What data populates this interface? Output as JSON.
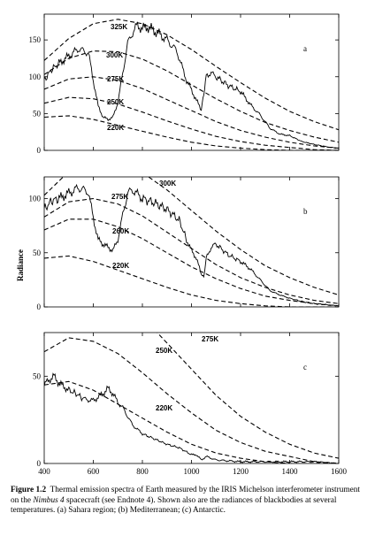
{
  "caption": {
    "label": "Figure 1.2",
    "text_before": "Thermal emission spectra of Earth measured by the IRIS Michelson interferometer instrument on the",
    "spacecraft": "Nimbus 4",
    "text_after": "spacecraft (see Endnote 4). Shown also are the radiances of blackbodies at several temperatures. (a) Sahara region; (b) Mediterranean; (c) Antarctic."
  },
  "chart_data": [
    {
      "type": "line",
      "panel": "a",
      "xlim": [
        400,
        1600
      ],
      "ylim": [
        0,
        185
      ],
      "yticks": [
        0,
        50,
        100,
        150
      ],
      "xticks": [
        400,
        600,
        800,
        1000,
        1200,
        1400,
        1600
      ],
      "xticklabels": [],
      "blackbody_curves": [
        {
          "label": "325K",
          "y": [
            122,
            152,
            172,
            178,
            172,
            157,
            137,
            114,
            92,
            71,
            53,
            39,
            28
          ]
        },
        {
          "label": "300K",
          "y": [
            103,
            125,
            135,
            134,
            124,
            108,
            89,
            70,
            53,
            38,
            27,
            18,
            11
          ]
        },
        {
          "label": "275K",
          "y": [
            83,
            97,
            100,
            95,
            84,
            69,
            54,
            39,
            27,
            18,
            11,
            6,
            3
          ]
        },
        {
          "label": "250K",
          "y": [
            64,
            72,
            70,
            63,
            52,
            40,
            29,
            19,
            12,
            7,
            4,
            1,
            0
          ]
        },
        {
          "label": "220K",
          "y": [
            45,
            47,
            42,
            34,
            26,
            18,
            11,
            6,
            3,
            1,
            0,
            0,
            0
          ]
        }
      ],
      "measured_spectrum": {
        "x": [
          400,
          430,
          460,
          500,
          540,
          580,
          600,
          620,
          640,
          660,
          680,
          700,
          720,
          740,
          760,
          780,
          800,
          820,
          860,
          900,
          940,
          960,
          980,
          1000,
          1020,
          1040,
          1050,
          1060,
          1080,
          1100,
          1150,
          1200,
          1240,
          1280,
          1320,
          1360,
          1400,
          1450,
          1500,
          1550,
          1590
        ],
        "y": [
          95,
          110,
          118,
          128,
          138,
          132,
          95,
          60,
          45,
          42,
          45,
          65,
          105,
          145,
          160,
          170,
          165,
          168,
          160,
          150,
          135,
          115,
          95,
          82,
          68,
          55,
          75,
          102,
          105,
          100,
          88,
          80,
          62,
          48,
          30,
          22,
          20,
          12,
          8,
          5,
          3
        ]
      }
    },
    {
      "type": "line",
      "panel": "b",
      "xlim": [
        400,
        1600
      ],
      "ylim": [
        0,
        120
      ],
      "yticks": [
        0,
        50,
        100
      ],
      "xticks": [
        400,
        600,
        800,
        1000,
        1200,
        1400,
        1600
      ],
      "xticklabels": [],
      "ylabel": "Radiance",
      "blackbody_curves": [
        {
          "label": "300K",
          "y": [
            103,
            125,
            135,
            134,
            124,
            108,
            89,
            70,
            53,
            38,
            27,
            18,
            11
          ]
        },
        {
          "label": "275K",
          "y": [
            83,
            97,
            100,
            95,
            84,
            69,
            54,
            39,
            27,
            18,
            11,
            6,
            3
          ]
        },
        {
          "label": "260K",
          "y": [
            71,
            81,
            81,
            74,
            63,
            50,
            37,
            26,
            17,
            10,
            6,
            3,
            1
          ]
        },
        {
          "label": "220K",
          "y": [
            45,
            47,
            42,
            34,
            26,
            18,
            11,
            6,
            3,
            1,
            0,
            0,
            0
          ]
        }
      ],
      "measured_spectrum": {
        "x": [
          400,
          430,
          460,
          500,
          540,
          580,
          600,
          620,
          640,
          660,
          680,
          700,
          720,
          740,
          760,
          800,
          850,
          900,
          950,
          980,
          1000,
          1020,
          1040,
          1050,
          1060,
          1080,
          1100,
          1150,
          1200,
          1240,
          1280,
          1320,
          1360,
          1400,
          1450,
          1500,
          1550,
          1590
        ],
        "y": [
          90,
          98,
          100,
          105,
          110,
          106,
          82,
          62,
          58,
          55,
          52,
          62,
          85,
          105,
          108,
          100,
          96,
          90,
          80,
          62,
          52,
          45,
          30,
          27,
          45,
          55,
          58,
          48,
          42,
          35,
          25,
          15,
          11,
          8,
          5,
          3,
          2,
          1
        ]
      }
    },
    {
      "type": "line",
      "panel": "c",
      "xlim": [
        400,
        1600
      ],
      "ylim": [
        0,
        75
      ],
      "yticks": [
        0,
        50
      ],
      "xticks": [
        400,
        600,
        800,
        1000,
        1200,
        1400,
        1600
      ],
      "xticklabels": [
        "400",
        "600",
        "800",
        "1000",
        "1200",
        "1400",
        "1600"
      ],
      "blackbody_curves": [
        {
          "label": "275K",
          "y": [
            83,
            97,
            100,
            95,
            84,
            69,
            54,
            39,
            27,
            18,
            11,
            6,
            3
          ]
        },
        {
          "label": "250K",
          "y": [
            64,
            72,
            70,
            63,
            52,
            40,
            29,
            19,
            12,
            7,
            4,
            1,
            0
          ]
        },
        {
          "label": "220K",
          "y": [
            45,
            47,
            42,
            34,
            26,
            18,
            11,
            6,
            3,
            1,
            0,
            0,
            0
          ]
        }
      ],
      "measured_spectrum": {
        "x": [
          400,
          420,
          440,
          460,
          480,
          500,
          530,
          560,
          600,
          640,
          660,
          680,
          700,
          720,
          740,
          760,
          800,
          850,
          900,
          950,
          1000,
          1020,
          1040,
          1060,
          1080,
          1100,
          1200,
          1300,
          1400,
          1500,
          1590
        ],
        "y": [
          45,
          48,
          50,
          46,
          44,
          42,
          40,
          37,
          36,
          40,
          43,
          40,
          35,
          32,
          27,
          22,
          17,
          14,
          11,
          9,
          5,
          5,
          2,
          4,
          3,
          2,
          1,
          1,
          1,
          1,
          0
        ]
      }
    }
  ],
  "bb_x": [
    400,
    500,
    600,
    700,
    800,
    900,
    1000,
    1100,
    1200,
    1300,
    1400,
    1500,
    1600
  ]
}
